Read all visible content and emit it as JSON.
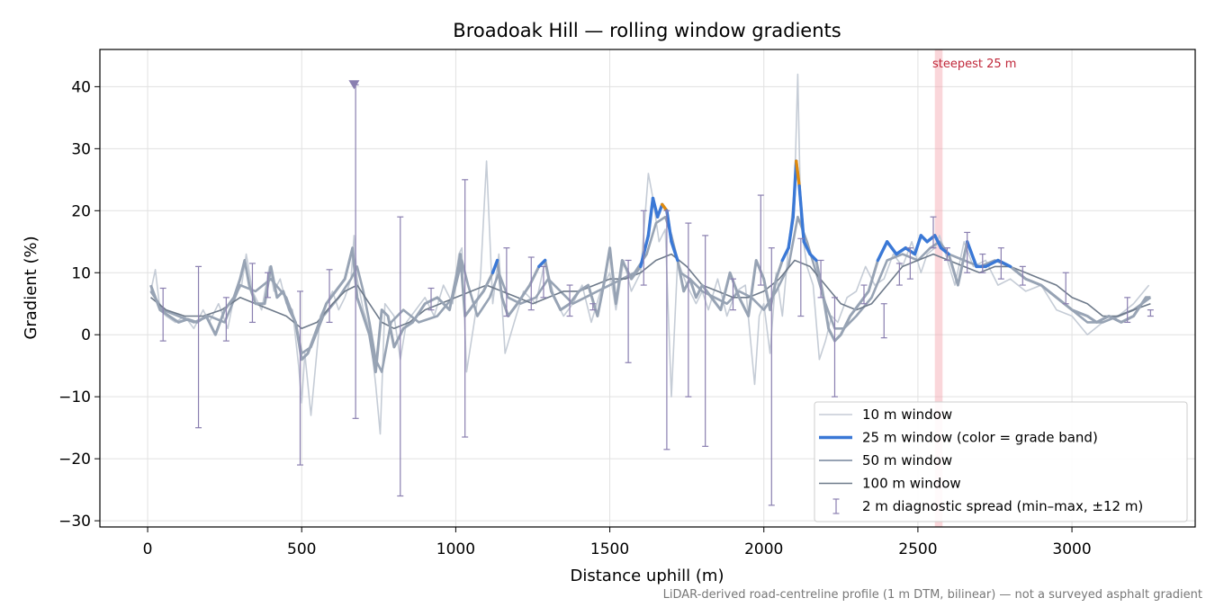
{
  "chart_data": {
    "type": "line",
    "title": "Broadoak Hill — rolling window gradients",
    "xlabel": "Distance uphill (m)",
    "ylabel": "Gradient (%)",
    "xlim": [
      -155,
      3400
    ],
    "ylim": [
      -31,
      46
    ],
    "x_ticks": [
      0,
      500,
      1000,
      1500,
      2000,
      2500,
      3000
    ],
    "y_ticks": [
      -30,
      -20,
      -10,
      0,
      10,
      20,
      30,
      40
    ],
    "grid": true,
    "legend_position": "lower-right",
    "footnote": "LiDAR-derived road-centreline profile (1 m DTM, bilinear) — not a surveyed asphalt gradient",
    "colors": {
      "w10": "#c5ccd6",
      "w25": "#3a78d6",
      "w50": "#97a3b4",
      "w100": "#6e7a8a",
      "band_orange": "#df8a0e",
      "band_red": "#b51b2a",
      "diag": "#8a7fb0",
      "steepest": "#f3a5ad",
      "steepest_text": "#c0283a"
    },
    "steepest_window": {
      "x0": 2555,
      "x1": 2580,
      "label": "steepest 25 m"
    },
    "max_marker": {
      "x": 670,
      "y": 40.3
    },
    "series": [
      {
        "name": "10 m window",
        "x": [
          10,
          25,
          40,
          60,
          90,
          120,
          150,
          180,
          200,
          230,
          260,
          280,
          305,
          320,
          340,
          370,
          395,
          410,
          430,
          450,
          470,
          490,
          500,
          510,
          530,
          560,
          600,
          620,
          640,
          660,
          670,
          680,
          700,
          720,
          740,
          755,
          770,
          800,
          820,
          840,
          870,
          900,
          930,
          960,
          990,
          1010,
          1020,
          1035,
          1060,
          1080,
          1100,
          1120,
          1140,
          1160,
          1190,
          1220,
          1260,
          1290,
          1320,
          1350,
          1380,
          1410,
          1440,
          1470,
          1500,
          1520,
          1545,
          1570,
          1600,
          1625,
          1640,
          1660,
          1680,
          1700,
          1720,
          1750,
          1780,
          1800,
          1820,
          1850,
          1880,
          1910,
          1940,
          1970,
          1985,
          2000,
          2020,
          2040,
          2060,
          2080,
          2100,
          2110,
          2120,
          2140,
          2160,
          2180,
          2200,
          2220,
          2240,
          2270,
          2300,
          2330,
          2360,
          2390,
          2420,
          2450,
          2480,
          2510,
          2530,
          2555,
          2570,
          2590,
          2620,
          2650,
          2680,
          2720,
          2760,
          2800,
          2850,
          2900,
          2950,
          3000,
          3050,
          3100,
          3150,
          3200,
          3250
        ],
        "values": [
          7,
          10.5,
          4,
          3,
          2,
          3,
          1,
          4,
          2,
          5,
          1,
          6,
          8,
          13,
          7,
          4,
          11,
          7,
          9,
          5,
          4,
          -5,
          -11,
          -3,
          -13,
          3,
          7,
          4,
          6,
          9,
          16,
          9,
          4,
          1,
          -8,
          -16,
          5,
          3,
          -4,
          2,
          4,
          6,
          3,
          8,
          5,
          13,
          14,
          -6,
          2,
          9,
          28,
          5,
          13,
          -3,
          2,
          7,
          5,
          12,
          6,
          3,
          5,
          8,
          2,
          7,
          10,
          4,
          12,
          7,
          10,
          26,
          22,
          15,
          17,
          -10,
          12,
          8,
          5,
          7,
          4,
          9,
          3,
          7,
          8,
          -8,
          3,
          5,
          -3,
          10,
          3,
          14,
          24,
          42,
          18,
          11,
          8,
          -4,
          -1,
          3,
          2,
          6,
          7,
          11,
          8,
          9,
          13,
          11,
          15,
          10,
          13,
          14,
          16,
          13,
          8,
          15,
          11,
          12,
          8,
          9,
          7,
          8,
          4,
          3,
          0,
          2,
          3,
          5,
          8
        ]
      },
      {
        "name": "25 m window (color = grade band)",
        "x": [
          10,
          40,
          70,
          100,
          130,
          160,
          190,
          220,
          250,
          280,
          300,
          315,
          330,
          350,
          380,
          400,
          420,
          440,
          460,
          480,
          500,
          520,
          550,
          580,
          610,
          640,
          665,
          680,
          700,
          720,
          740,
          760,
          780,
          800,
          830,
          860,
          900,
          940,
          980,
          1000,
          1015,
          1030,
          1060,
          1090,
          1120,
          1135,
          1150,
          1170,
          1200,
          1240,
          1270,
          1290,
          1310,
          1340,
          1370,
          1400,
          1430,
          1460,
          1480,
          1500,
          1520,
          1540,
          1570,
          1600,
          1625,
          1640,
          1655,
          1670,
          1685,
          1700,
          1720,
          1740,
          1760,
          1780,
          1800,
          1830,
          1860,
          1890,
          1920,
          1950,
          1975,
          2000,
          2020,
          2040,
          2060,
          2080,
          2095,
          2105,
          2115,
          2130,
          2150,
          2170,
          2190,
          2210,
          2230,
          2250,
          2280,
          2310,
          2340,
          2370,
          2400,
          2430,
          2460,
          2490,
          2510,
          2530,
          2555,
          2575,
          2600,
          2630,
          2660,
          2690,
          2720,
          2760,
          2800,
          2850,
          2900,
          2950,
          3000,
          3050,
          3080,
          3120,
          3160,
          3200,
          3240,
          3255
        ],
        "values": [
          8,
          4,
          3,
          2,
          2.5,
          2,
          3,
          0,
          4,
          6,
          9,
          12,
          8,
          5,
          5,
          11,
          6,
          7,
          4,
          2,
          -4,
          -3,
          1,
          5,
          7,
          9,
          14,
          6,
          3,
          0,
          -6,
          4,
          3,
          -2,
          1,
          2,
          5,
          6,
          4,
          9,
          13,
          3,
          5,
          7,
          10,
          12,
          6,
          3,
          5,
          8,
          11,
          12,
          7,
          4,
          5,
          7,
          8,
          3,
          8,
          14,
          5,
          12,
          9,
          11,
          16,
          22,
          19,
          21,
          20,
          15,
          12,
          7,
          9,
          6,
          8,
          6,
          4,
          10,
          6,
          3,
          12,
          9,
          4,
          9,
          12,
          14,
          19,
          28,
          24,
          15,
          13,
          12,
          7,
          1,
          -1,
          0,
          3,
          5,
          7,
          12,
          15,
          13,
          14,
          13,
          16,
          15,
          16,
          14,
          13,
          8,
          15,
          11,
          11,
          12,
          11,
          9,
          8,
          6,
          4,
          3,
          2,
          3,
          2,
          3,
          6,
          6
        ]
      },
      {
        "name": "50 m window",
        "x": [
          10,
          50,
          100,
          150,
          200,
          250,
          300,
          350,
          400,
          450,
          480,
          500,
          530,
          570,
          620,
          660,
          680,
          700,
          720,
          740,
          760,
          790,
          830,
          880,
          940,
          990,
          1020,
          1040,
          1070,
          1110,
          1140,
          1170,
          1210,
          1260,
          1300,
          1340,
          1380,
          1420,
          1460,
          1500,
          1540,
          1580,
          1620,
          1650,
          1680,
          1700,
          1730,
          1760,
          1800,
          1840,
          1880,
          1920,
          1960,
          2000,
          2040,
          2080,
          2110,
          2140,
          2170,
          2200,
          2230,
          2260,
          2300,
          2350,
          2400,
          2450,
          2500,
          2540,
          2570,
          2600,
          2650,
          2700,
          2750,
          2800,
          2850,
          2900,
          2950,
          3000,
          3050,
          3100,
          3150,
          3200,
          3255
        ],
        "values": [
          7,
          4,
          3,
          2,
          3,
          2,
          8,
          7,
          9,
          6,
          2,
          -3,
          -2,
          3,
          6,
          9,
          11,
          7,
          2,
          -4,
          -6,
          2,
          4,
          2,
          3,
          6,
          12,
          8,
          3,
          6,
          10,
          6,
          5,
          6,
          9,
          7,
          5,
          6,
          7,
          8,
          9,
          10,
          13,
          18,
          19,
          16,
          10,
          9,
          7,
          6,
          5,
          7,
          6,
          4,
          7,
          11,
          19,
          15,
          10,
          5,
          1,
          1,
          3,
          6,
          12,
          13,
          12,
          14,
          15,
          13,
          12,
          11,
          12,
          11,
          9,
          8,
          6,
          4,
          2,
          2,
          3,
          4,
          6
        ]
      },
      {
        "name": "100 m window",
        "x": [
          10,
          60,
          120,
          180,
          240,
          300,
          350,
          400,
          450,
          500,
          550,
          600,
          640,
          680,
          720,
          760,
          800,
          850,
          900,
          950,
          1000,
          1050,
          1100,
          1150,
          1200,
          1250,
          1300,
          1350,
          1400,
          1450,
          1500,
          1550,
          1600,
          1650,
          1700,
          1750,
          1800,
          1850,
          1900,
          1950,
          2000,
          2050,
          2100,
          2150,
          2200,
          2250,
          2300,
          2350,
          2400,
          2450,
          2500,
          2550,
          2600,
          2650,
          2700,
          2750,
          2800,
          2850,
          2900,
          2950,
          3000,
          3050,
          3100,
          3150,
          3200,
          3255
        ],
        "values": [
          6,
          4,
          3,
          3,
          4,
          6,
          5,
          4,
          3,
          1,
          2,
          5,
          7,
          8,
          5,
          2,
          1,
          2,
          4,
          5,
          6,
          7,
          8,
          7,
          6,
          5,
          6,
          7,
          7,
          8,
          9,
          9,
          10,
          12,
          13,
          11,
          8,
          7,
          6,
          6,
          7,
          9,
          12,
          11,
          8,
          5,
          4,
          5,
          8,
          11,
          12,
          13,
          12,
          11,
          10,
          11,
          11,
          10,
          9,
          8,
          6,
          5,
          3,
          3,
          4,
          5
        ]
      },
      {
        "name": "2 m diagnostic spread (min–max, ±12 m)",
        "x": [
          50,
          165,
          255,
          340,
          390,
          495,
          590,
          675,
          820,
          920,
          1030,
          1165,
          1245,
          1285,
          1370,
          1445,
          1560,
          1610,
          1685,
          1755,
          1810,
          1900,
          1990,
          2025,
          2120,
          2185,
          2230,
          2325,
          2390,
          2440,
          2475,
          2550,
          2595,
          2660,
          2710,
          2770,
          2840,
          2980,
          3180,
          3255
        ],
        "y_min": [
          -1,
          -15,
          -1,
          2,
          6,
          -21,
          2,
          -13.5,
          -26,
          4,
          -16.5,
          3,
          4,
          6,
          3,
          4,
          -4.5,
          8,
          -18.5,
          -10,
          -18,
          4,
          8,
          -27.5,
          3,
          6,
          -10,
          5,
          -0.5,
          8,
          9,
          14,
          12,
          10,
          10,
          9,
          8,
          5,
          2,
          3
        ],
        "y_max": [
          7.5,
          11,
          6,
          11.5,
          10,
          7,
          10.5,
          40.3,
          19,
          7.5,
          25,
          14,
          12.5,
          11,
          8,
          5,
          12,
          20,
          20,
          18,
          16,
          9,
          22.5,
          14,
          15.5,
          12,
          6,
          8,
          5,
          11.5,
          14,
          19,
          14,
          16.5,
          13,
          14,
          11,
          10,
          6,
          4
        ]
      }
    ]
  }
}
